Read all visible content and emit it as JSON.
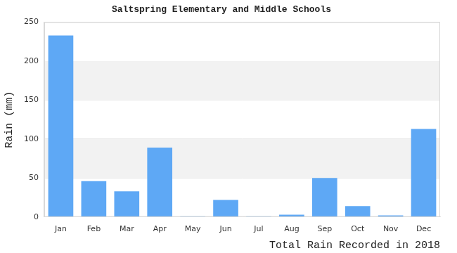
{
  "chart_data": {
    "type": "bar",
    "title": "Saltspring Elementary and Middle Schools",
    "x_label": "Total Rain Recorded in 2018",
    "y_label": "Rain (mm)",
    "categories": [
      "Jan",
      "Feb",
      "Mar",
      "Apr",
      "May",
      "Jun",
      "Jul",
      "Aug",
      "Sep",
      "Oct",
      "Nov",
      "Dec"
    ],
    "values": [
      233,
      46,
      33,
      89,
      1,
      22,
      1,
      3,
      50,
      14,
      2,
      113
    ],
    "color": "#5ea8f5",
    "ylim": [
      0,
      250
    ],
    "yticks": [
      0,
      50,
      100,
      150,
      200,
      250
    ],
    "grid": true
  }
}
